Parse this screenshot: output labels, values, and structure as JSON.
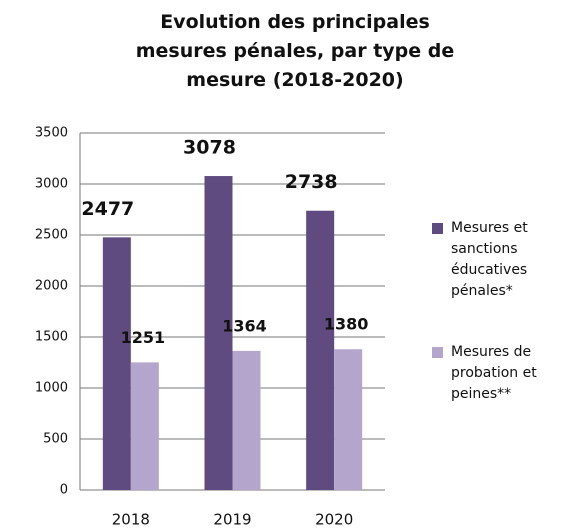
{
  "chart_data": {
    "type": "bar",
    "title": "Evolution des principales mesures pénales, par type de mesure (2018-2020)",
    "categories": [
      "2018",
      "2019",
      "2020"
    ],
    "series": [
      {
        "name": "Mesures et sanctions éducatives pénales*",
        "color": "#5f4b80",
        "values": [
          2477,
          3078,
          2738
        ]
      },
      {
        "name": "Mesures de probation et peines**",
        "color": "#b4a5cc",
        "values": [
          1251,
          1364,
          1380
        ]
      }
    ],
    "ylim": [
      0,
      3500
    ],
    "yticks": [
      0,
      500,
      1000,
      1500,
      2000,
      2500,
      3000,
      3500
    ],
    "grid": true
  }
}
